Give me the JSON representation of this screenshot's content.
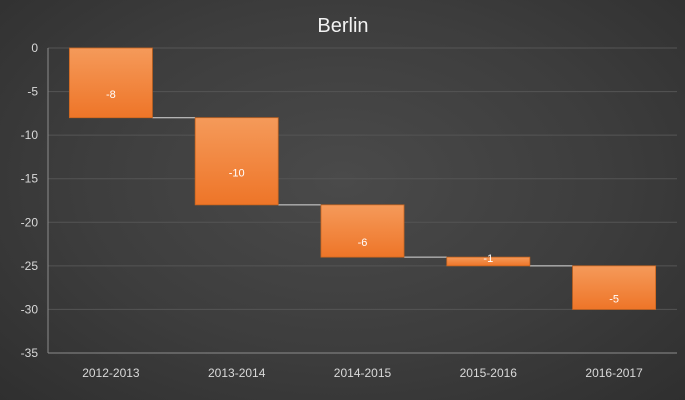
{
  "chart_data": {
    "type": "waterfall",
    "title": "Berlin",
    "categories": [
      "2012-2013",
      "2013-2014",
      "2014-2015",
      "2015-2016",
      "2016-2017"
    ],
    "values": [
      -8,
      -10,
      -6,
      -1,
      -5
    ],
    "data_labels": [
      "-8",
      "-10",
      "-6",
      "-1",
      "-5"
    ],
    "start_value": 0,
    "ylim": [
      -35,
      0
    ],
    "yticks": [
      0,
      -5,
      -10,
      -15,
      -20,
      -25,
      -30,
      -35
    ],
    "ytick_labels": [
      "0",
      "-5",
      "-10",
      "-15",
      "-20",
      "-25",
      "-30",
      "-35"
    ],
    "xlabel": "",
    "ylabel": "",
    "grid": true,
    "legend": "none",
    "colors": {
      "bar": "#f07c30",
      "bar_light": "#f59a5a",
      "bar_border": "#c9651f",
      "connector": "#d9d9d9",
      "grid": "#555555",
      "text": "#d9d9d9",
      "background": "#3d3d3d"
    }
  }
}
